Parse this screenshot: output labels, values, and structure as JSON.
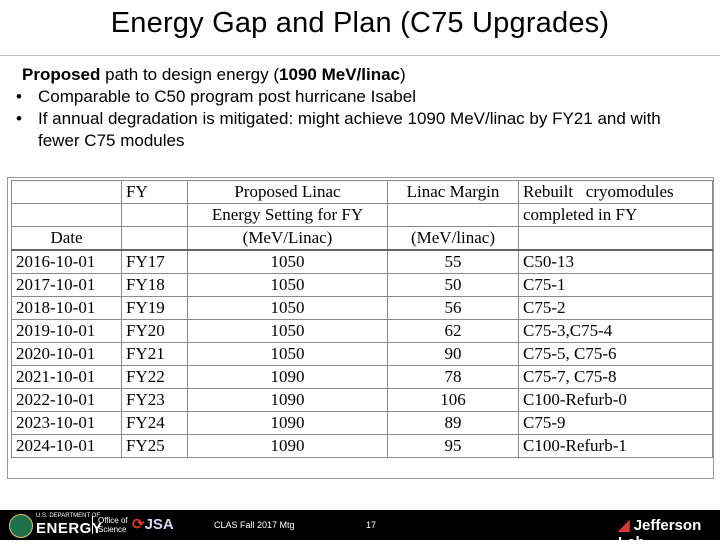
{
  "slide": {
    "title": "Energy Gap and Plan (C75 Upgrades)",
    "intro": {
      "bold1": "Proposed",
      "text1": " path to design energy (",
      "bold2": "1090 MeV/linac",
      "text2": ")"
    },
    "bullets": [
      {
        "text": "Comparable to C50 program post hurricane Isabel"
      },
      {
        "text": "If annual degradation is mitigated: might achieve 1090 MeV/linac by FY21 and with fewer C75 modules"
      }
    ],
    "bullet_glyph": "•"
  },
  "table": {
    "header": {
      "fy": "FY",
      "energy_line1": "Proposed Linac",
      "energy_line2": "Energy Setting for FY",
      "margin": "Linac Margin",
      "rebuilt_line1": "Rebuilt   cryomodules",
      "rebuilt_line2": "completed in FY",
      "date": "Date",
      "energy_unit": "(MeV/Linac)",
      "margin_unit": "(MeV/linac)"
    },
    "rows": [
      {
        "date": "2016-10-01",
        "fy": "FY17",
        "energy": "1050",
        "margin": "55",
        "rebuilt": "C50-13"
      },
      {
        "date": "2017-10-01",
        "fy": "FY18",
        "energy": "1050",
        "margin": "50",
        "rebuilt": "C75-1"
      },
      {
        "date": "2018-10-01",
        "fy": "FY19",
        "energy": "1050",
        "margin": "56",
        "rebuilt": "C75-2"
      },
      {
        "date": "2019-10-01",
        "fy": "FY20",
        "energy": "1050",
        "margin": "62",
        "rebuilt": "C75-3,C75-4"
      },
      {
        "date": "2020-10-01",
        "fy": "FY21",
        "energy": "1050",
        "margin": "90",
        "rebuilt": "C75-5, C75-6"
      },
      {
        "date": "2021-10-01",
        "fy": "FY22",
        "energy": "1090",
        "margin": "78",
        "rebuilt": "C75-7, C75-8"
      },
      {
        "date": "2022-10-01",
        "fy": "FY23",
        "energy": "1090",
        "margin": "106",
        "rebuilt": "C100-Refurb-0"
      },
      {
        "date": "2023-10-01",
        "fy": "FY24",
        "energy": "1090",
        "margin": "89",
        "rebuilt": "C75-9"
      },
      {
        "date": "2024-10-01",
        "fy": "FY25",
        "energy": "1090",
        "margin": "95",
        "rebuilt": "C100-Refurb-1"
      }
    ]
  },
  "footer": {
    "doe_small": "U.S. DEPARTMENT OF",
    "doe_big": "ENERGY",
    "office_line1": "Office of",
    "office_line2": "Science",
    "jsa": "JSA",
    "meeting": "CLAS Fall 2017 Mtg",
    "page": "17",
    "lab": "Jefferson Lab",
    "colors": {
      "footer_bg": "#000000",
      "accent_red": "#d23b2e",
      "doe_green": "#1f6f4a"
    }
  }
}
